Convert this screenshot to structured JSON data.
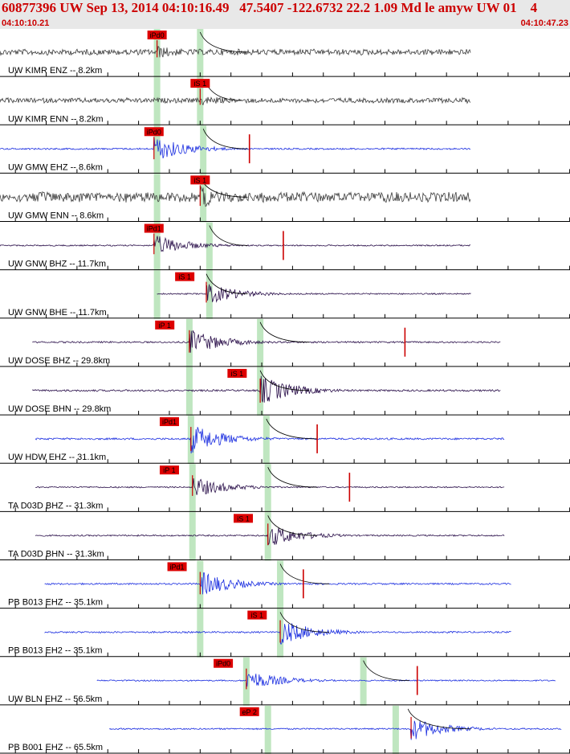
{
  "header": {
    "title": "60877396 UW Sep 13, 2014 04:10:16.49   47.5407 -122.6732 22.2 1.09 Md le amyw UW 01    4",
    "start_time": "04:10:10.21",
    "end_time": "04:10:47.23"
  },
  "colors": {
    "header_text": "#cc0000",
    "trace_dark": "#3c3c3c",
    "trace_blue": "#1a2de0",
    "trace_purple": "#2a0f4a",
    "pick_box": "#dd0000",
    "pick_window": "#bfe6c0"
  },
  "chart_data": {
    "type": "seismogram",
    "x_range_seconds": [
      0,
      37.02
    ],
    "traces": [
      {
        "label": "UW KIMR ENZ -- 8.2km",
        "color": "dark",
        "start": 0.0,
        "end": 30.6,
        "amp": 0.3,
        "onset": 10.2,
        "pick": "iPd0",
        "pick_time": 10.2,
        "windows": [
          10.2,
          13.0
        ],
        "coda": [
          13.0,
          14.0
        ]
      },
      {
        "label": "UW KIMR ENN -- 8.2km",
        "color": "dark",
        "start": 0.0,
        "end": 30.6,
        "amp": 0.25,
        "onset": 13.0,
        "pick": "iS 1",
        "pick_time": 13.0,
        "windows": [
          10.2,
          13.0
        ],
        "coda": [
          13.3,
          13.6
        ]
      },
      {
        "label": "UW GMW EHZ -- 8.6km",
        "color": "blue",
        "start": 0.0,
        "end": 30.6,
        "amp": 0.6,
        "onset": 10.0,
        "pick": "iPd0",
        "pick_time": 10.0,
        "windows": [
          10.2,
          13.2
        ],
        "coda": [
          13.2,
          14.0
        ],
        "marker": 16.2
      },
      {
        "label": "UW GMW ENN -- 8.6km",
        "color": "dark",
        "start": 0.0,
        "end": 30.6,
        "amp": 0.5,
        "onset": 13.0,
        "pick": "iS 1",
        "pick_time": 13.0,
        "windows": [
          10.2,
          13.2
        ],
        "coda": [
          13.0,
          14.0
        ]
      },
      {
        "label": "UW GNW BHZ -- 11.7km",
        "color": "purple",
        "start": 0.0,
        "end": 30.6,
        "amp": 0.5,
        "onset": 10.0,
        "pick": "iPd1",
        "pick_time": 10.0,
        "windows": [
          10.2,
          13.6
        ],
        "coda": [
          13.6,
          14.0
        ],
        "marker": 18.4
      },
      {
        "label": "UW GNW BHE -- 11.7km",
        "color": "purple",
        "start": 10.2,
        "end": 30.6,
        "amp": 0.5,
        "onset": 13.4,
        "pick": "iS 1",
        "pick_time": 12.0,
        "windows": [
          10.2,
          13.6
        ],
        "coda": [
          13.4,
          14.0
        ]
      },
      {
        "label": "UW DOSE BHZ -- 29.8km",
        "color": "purple",
        "start": 2.1,
        "end": 32.5,
        "amp": 0.6,
        "onset": 12.3,
        "pick": "iP 1",
        "pick_time": 10.7,
        "windows": [
          12.3,
          16.9
        ],
        "coda": [
          16.9,
          18.0
        ],
        "marker": 26.3
      },
      {
        "label": "UW DOSE BHN -- 29.8km",
        "color": "purple",
        "start": 2.1,
        "end": 32.5,
        "amp": 0.7,
        "onset": 16.9,
        "pick": "iS 1",
        "pick_time": 15.4,
        "windows": [
          12.3,
          16.9
        ],
        "coda": [
          16.9,
          18.0
        ]
      },
      {
        "label": "UW HDW EHZ -- 31.1km",
        "color": "blue",
        "start": 2.3,
        "end": 32.8,
        "amp": 0.7,
        "onset": 12.4,
        "pick": "iPd1",
        "pick_time": 11.0,
        "windows": [
          12.4,
          17.3
        ],
        "coda": [
          17.3,
          18.5
        ],
        "marker": 20.6
      },
      {
        "label": "TA D03D BHZ -- 31.3km",
        "color": "purple",
        "start": 2.3,
        "end": 32.8,
        "amp": 0.5,
        "onset": 12.5,
        "pick": "iP 1",
        "pick_time": 11.0,
        "windows": [
          12.5,
          17.4
        ],
        "coda": [
          17.4,
          18.5
        ],
        "marker": 22.7
      },
      {
        "label": "TA D03D BHN -- 31.3km",
        "color": "purple",
        "start": 2.3,
        "end": 32.8,
        "amp": 0.55,
        "onset": 17.4,
        "pick": "iS 1",
        "pick_time": 15.8,
        "windows": [
          12.5,
          17.4
        ],
        "coda": [
          17.4,
          18.5
        ]
      },
      {
        "label": "PB B013 EHZ -- 35.1km",
        "color": "blue",
        "start": 2.9,
        "end": 33.2,
        "amp": 0.6,
        "onset": 13.0,
        "pick": "iPd1",
        "pick_time": 11.5,
        "windows": [
          13.0,
          18.2
        ],
        "coda": [
          18.2,
          19.3
        ],
        "marker": 19.7
      },
      {
        "label": "PB B013 EH2 -- 35.1km",
        "color": "blue",
        "start": 2.9,
        "end": 33.2,
        "amp": 0.6,
        "onset": 18.2,
        "pick": "iS 1",
        "pick_time": 16.7,
        "windows": [
          13.0,
          18.2
        ],
        "coda": [
          18.2,
          19.3
        ]
      },
      {
        "label": "UW BLN EHZ -- 56.5km",
        "color": "blue",
        "start": 6.3,
        "end": 36.1,
        "amp": 0.5,
        "onset": 16.0,
        "pick": "iPd0",
        "pick_time": 14.5,
        "windows": [
          16.0,
          23.6
        ],
        "coda": [
          23.6,
          24.5
        ],
        "marker": 27.1
      },
      {
        "label": "PB B001 EHZ -- 65.5km",
        "color": "blue",
        "start": 7.1,
        "end": 36.5,
        "amp": 0.55,
        "onset": 26.7,
        "pick": "eP 2",
        "pick_time": 16.2,
        "windows": [
          17.4,
          25.7
        ],
        "coda": [
          26.5,
          28.5
        ]
      }
    ]
  }
}
